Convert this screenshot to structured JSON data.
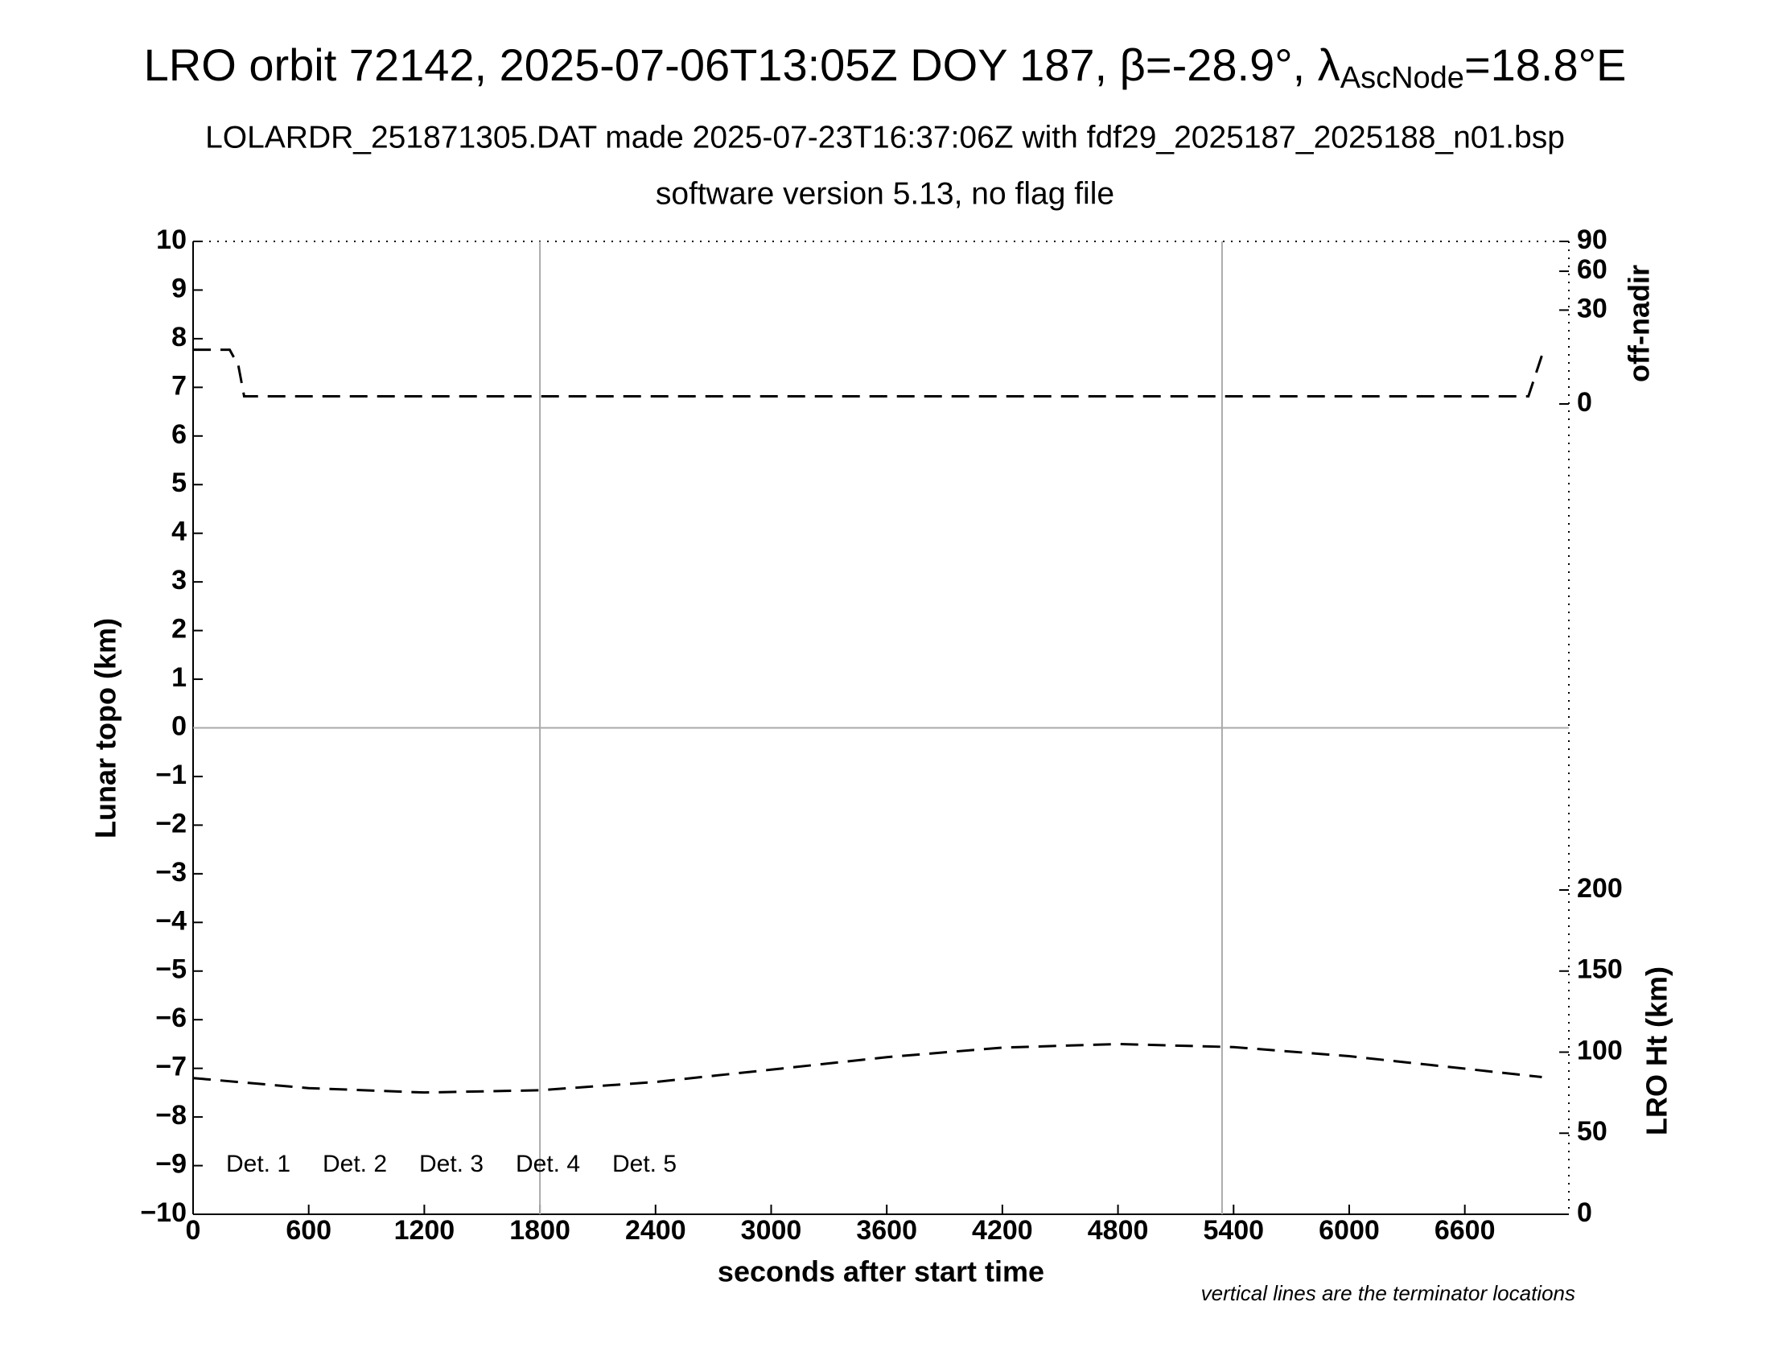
{
  "chart_data": {
    "type": "line",
    "title": "LRO orbit 72142, 2025-07-06T13:05Z DOY 187, β=-28.9°, λ",
    "title_sub": "AscNode",
    "title_end": "=18.8°E",
    "subtitle": "LOLARDR_251871305.DAT made 2025-07-23T16:37:06Z with fdf29_2025187_2025188_n01.bsp",
    "subtitle2": "software version 5.13, no flag file",
    "xlabel": "seconds after start time",
    "ylabel": "Lunar topo (km)",
    "y2label": "off-nadir",
    "y3label": "LRO Ht (km)",
    "note": "vertical lines are the terminator locations",
    "xlim": [
      0,
      7140
    ],
    "xticks": [
      0,
      600,
      1200,
      1800,
      2400,
      3000,
      3600,
      4200,
      4800,
      5400,
      6000,
      6600
    ],
    "ylim": [
      -10,
      10
    ],
    "yticks": [
      {
        "value": -10,
        "label": "−10"
      },
      {
        "value": -9,
        "label": "−9"
      },
      {
        "value": -8,
        "label": "−8"
      },
      {
        "value": -7,
        "label": "−7"
      },
      {
        "value": -6,
        "label": "−6"
      },
      {
        "value": -5,
        "label": "−5"
      },
      {
        "value": -4,
        "label": "−4"
      },
      {
        "value": -3,
        "label": "−3"
      },
      {
        "value": -2,
        "label": "−2"
      },
      {
        "value": -1,
        "label": "−1"
      },
      0,
      1,
      2,
      3,
      4,
      5,
      6,
      7,
      8,
      9,
      10
    ],
    "y2lim": [
      0,
      90
    ],
    "y2scale": "sqrt",
    "y2ticks": [
      0,
      30,
      60,
      90
    ],
    "y3lim": [
      0,
      200
    ],
    "y3ticks": [
      0,
      50,
      100,
      150,
      200
    ],
    "terminators": [
      1800,
      5340
    ],
    "zero_line": true,
    "detectors": [
      {
        "name": "Det. 1",
        "color": "#000000"
      },
      {
        "name": "Det. 2",
        "color": "#0000ff"
      },
      {
        "name": "Det. 3",
        "color": "#00ee00"
      },
      {
        "name": "Det. 4",
        "color": "#ffa500"
      },
      {
        "name": "Det. 5",
        "color": "#ff0000"
      }
    ],
    "series": [
      {
        "axis": "y2",
        "color": "#000000",
        "x": [
          0,
          190,
          235,
          265,
          600,
          1200,
          1800,
          2400,
          3000,
          3600,
          4200,
          4800,
          5400,
          6000,
          6600,
          6930,
          7000
        ],
        "values": [
          10,
          10,
          5,
          0.2,
          0.2,
          0.2,
          0.2,
          0.2,
          0.2,
          0.2,
          0.2,
          0.2,
          0.2,
          0.2,
          0.2,
          0.2,
          8
        ]
      },
      {
        "axis": "y3",
        "color": "#000000",
        "x": [
          0,
          600,
          1200,
          1800,
          2400,
          3000,
          3600,
          4200,
          4800,
          5400,
          6000,
          6600,
          7000
        ],
        "values": [
          84,
          77.8,
          75.1,
          76.5,
          81.6,
          89.2,
          96.9,
          102.8,
          105,
          103.1,
          97.5,
          89.8,
          84.6
        ]
      }
    ]
  }
}
